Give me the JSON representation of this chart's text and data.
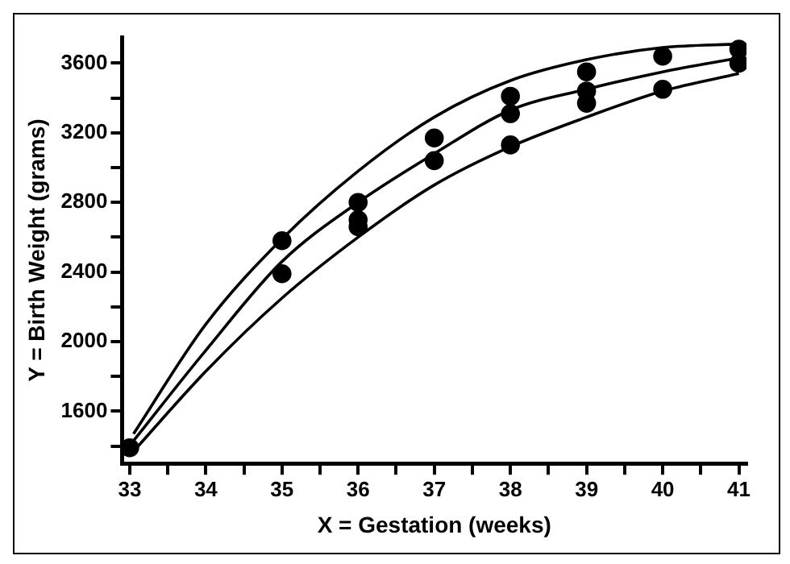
{
  "chart_data": {
    "type": "scatter",
    "xlabel": "X = Gestation (weeks)",
    "ylabel": "Y = Birth Weight (grams)",
    "xlim": [
      32.9,
      41.1
    ],
    "xticks": [
      33,
      {
        "value": 33.5,
        "label": null
      },
      34,
      {
        "value": 34.5,
        "label": null
      },
      35,
      {
        "value": 35.5,
        "label": null
      },
      36,
      {
        "value": 36.5,
        "label": null
      },
      37,
      {
        "value": 37.5,
        "label": null
      },
      38,
      {
        "value": 38.5,
        "label": null
      },
      39,
      {
        "value": 39.5,
        "label": null
      },
      40,
      {
        "value": 40.5,
        "label": null
      },
      41
    ],
    "ylim": [
      1300,
      3750
    ],
    "yticks": [
      {
        "value": 1400,
        "label": null
      },
      1600,
      {
        "value": 1800,
        "label": null
      },
      2000,
      {
        "value": 2200,
        "label": null
      },
      2400,
      {
        "value": 2600,
        "label": null
      },
      2800,
      {
        "value": 3000,
        "label": null
      },
      3200,
      {
        "value": 3400,
        "label": null
      },
      3600
    ],
    "grid": false,
    "legend": false,
    "marker": "circle",
    "series": [
      {
        "type": "scatter",
        "color": "#000000",
        "x": [
          33,
          35,
          35,
          36,
          36,
          36,
          37,
          37,
          38,
          38,
          38,
          39,
          39,
          39,
          40,
          40,
          41,
          41
        ],
        "values": [
          1390,
          2580,
          2390,
          2800,
          2700,
          2660,
          3170,
          3040,
          3410,
          3310,
          3130,
          3550,
          3440,
          3370,
          3640,
          3450,
          3680,
          3600
        ]
      },
      {
        "type": "line",
        "color": "#000000",
        "marker": "none",
        "x": [
          33.05,
          34,
          35,
          36,
          37,
          38,
          39,
          40,
          41
        ],
        "values": [
          1470,
          2100,
          2590,
          2980,
          3290,
          3500,
          3620,
          3690,
          3710
        ]
      },
      {
        "type": "line",
        "color": "#000000",
        "marker": "none",
        "x": [
          33.05,
          34,
          35,
          36,
          37,
          38,
          39,
          40,
          41
        ],
        "values": [
          1430,
          1950,
          2460,
          2800,
          3080,
          3330,
          3450,
          3550,
          3630
        ]
      },
      {
        "type": "line",
        "color": "#000000",
        "marker": "none",
        "x": [
          33.05,
          34,
          35,
          36,
          37,
          38,
          39,
          40,
          41
        ],
        "values": [
          1370,
          1830,
          2250,
          2600,
          2900,
          3120,
          3290,
          3440,
          3540
        ]
      }
    ]
  }
}
